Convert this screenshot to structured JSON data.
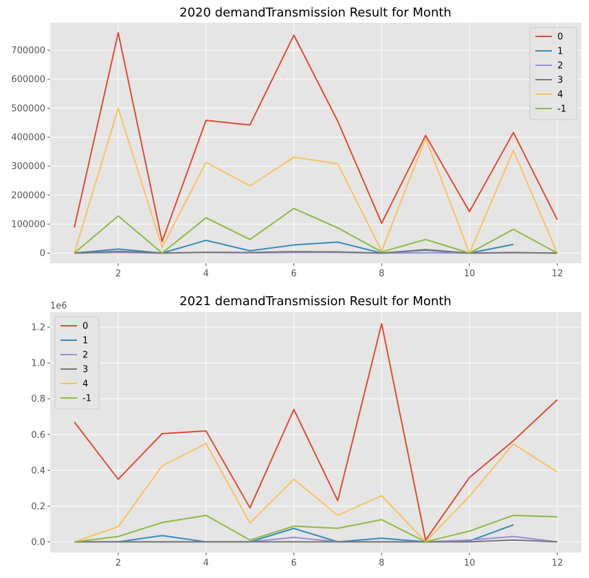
{
  "chart_data": [
    {
      "type": "line",
      "title": "2020 demandTransmission Result for Month",
      "xlabel": "",
      "ylabel": "",
      "x": [
        1,
        2,
        3,
        4,
        5,
        6,
        7,
        8,
        9,
        10,
        11,
        12
      ],
      "xticks": [
        2,
        4,
        6,
        8,
        10,
        12
      ],
      "xlim": [
        0.45,
        12.55
      ],
      "ylim": [
        -35000,
        795000
      ],
      "yticks": [
        0,
        100000,
        200000,
        300000,
        400000,
        500000,
        600000,
        700000
      ],
      "ytick_labels": [
        "0",
        "100000",
        "200000",
        "300000",
        "400000",
        "500000",
        "600000",
        "700000"
      ],
      "offset_label": "",
      "grid": true,
      "legend_position": "top-right",
      "series": [
        {
          "name": "0",
          "color": "#E24A33",
          "values": [
            88000,
            760000,
            40000,
            458000,
            442000,
            752000,
            455000,
            103000,
            406000,
            143000,
            416000,
            115000
          ]
        },
        {
          "name": "1",
          "color": "#348ABD",
          "values": [
            0,
            14000,
            0,
            44000,
            8000,
            28000,
            38000,
            0,
            10000,
            0,
            30000,
            null
          ]
        },
        {
          "name": "2",
          "color": "#988ED5",
          "values": [
            0,
            2000,
            0,
            2000,
            1000,
            2000,
            2000,
            0,
            1000,
            0,
            1000,
            0
          ]
        },
        {
          "name": "3",
          "color": "#777777",
          "values": [
            0,
            6000,
            0,
            3000,
            2000,
            5000,
            4000,
            0,
            12000,
            0,
            2000,
            0
          ]
        },
        {
          "name": "4",
          "color": "#FBC15E",
          "values": [
            0,
            500000,
            20000,
            313000,
            232000,
            331000,
            308000,
            7000,
            397000,
            0,
            354000,
            0
          ]
        },
        {
          "name": "-1",
          "color": "#8EBA42",
          "values": [
            0,
            128000,
            0,
            122000,
            47000,
            154000,
            87000,
            4000,
            47000,
            0,
            82000,
            0
          ]
        }
      ]
    },
    {
      "type": "line",
      "title": "2021 demandTransmission Result for Month",
      "xlabel": "",
      "ylabel": "",
      "x": [
        1,
        2,
        3,
        4,
        5,
        6,
        7,
        8,
        9,
        10,
        11,
        12
      ],
      "xticks": [
        2,
        4,
        6,
        8,
        10,
        12
      ],
      "xlim": [
        0.45,
        12.55
      ],
      "ylim": [
        -0.06,
        1.285
      ],
      "yticks": [
        0,
        0.2,
        0.4,
        0.6,
        0.8,
        1.0,
        1.2
      ],
      "ytick_labels": [
        "0.0",
        "0.2",
        "0.4",
        "0.6",
        "0.8",
        "1.0",
        "1.2"
      ],
      "offset_label": "1e6",
      "grid": true,
      "legend_position": "top-left",
      "series": [
        {
          "name": "0",
          "color": "#E24A33",
          "values": [
            0.67,
            0.35,
            0.605,
            0.62,
            0.19,
            0.74,
            0.23,
            1.22,
            0.01,
            0.36,
            0.565,
            0.795
          ]
        },
        {
          "name": "1",
          "color": "#348ABD",
          "values": [
            0,
            0,
            0.035,
            0,
            0,
            0.075,
            0,
            0.02,
            0,
            0.005,
            0.095,
            null
          ]
        },
        {
          "name": "2",
          "color": "#988ED5",
          "values": [
            0,
            0,
            0,
            0,
            0,
            0.025,
            0,
            0,
            0,
            0.01,
            0.03,
            0
          ]
        },
        {
          "name": "3",
          "color": "#777777",
          "values": [
            0,
            0,
            0,
            0,
            0,
            0,
            0,
            0,
            0,
            0,
            0.01,
            0
          ]
        },
        {
          "name": "4",
          "color": "#FBC15E",
          "values": [
            0,
            0.085,
            0.425,
            0.55,
            0.105,
            0.35,
            0.148,
            0.258,
            0,
            0.255,
            0.548,
            0.39
          ]
        },
        {
          "name": "-1",
          "color": "#8EBA42",
          "values": [
            0,
            0.03,
            0.108,
            0.148,
            0.01,
            0.088,
            0.076,
            0.124,
            0,
            0.06,
            0.148,
            0.14
          ]
        }
      ]
    }
  ]
}
